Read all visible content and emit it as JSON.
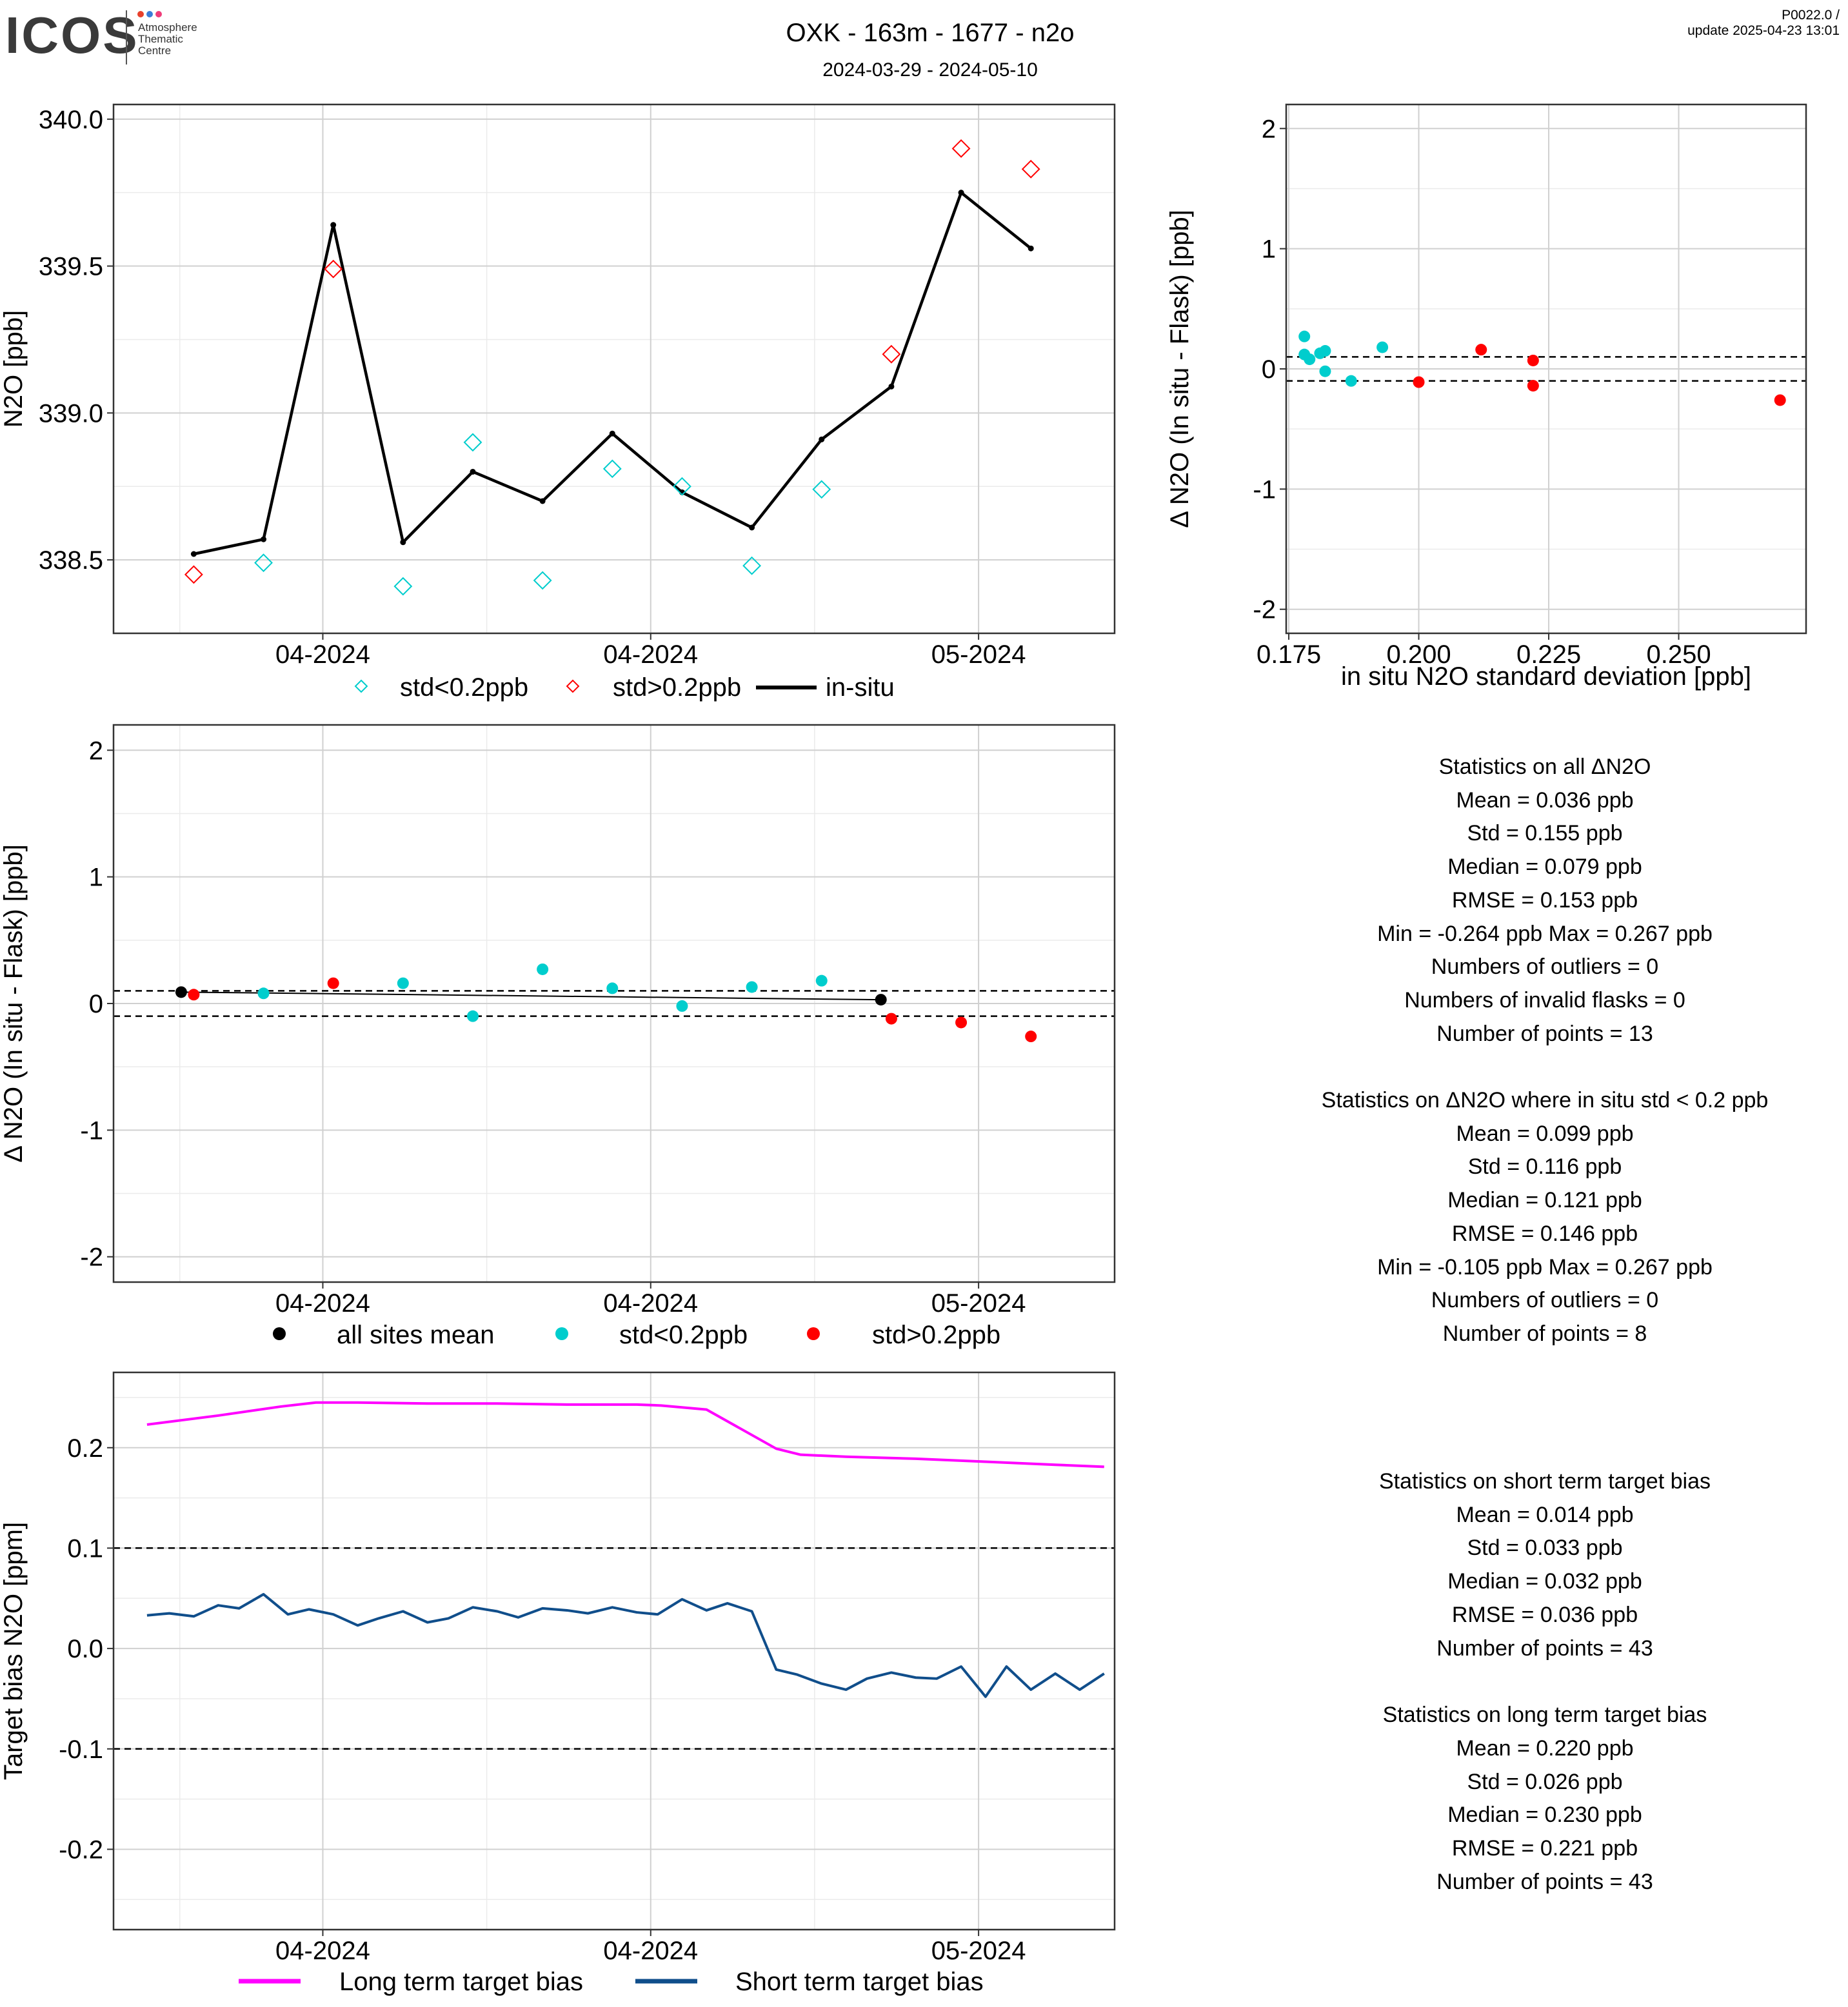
{
  "header": {
    "logo_word": "ICOS",
    "logo_sub": [
      "Atmosphere",
      "Thematic",
      "Centre"
    ],
    "logo_dot_colors": [
      "#e8412c",
      "#3b7dd8",
      "#ef3d7a"
    ],
    "title": "OXK - 163m - 1677 - n2o",
    "subtitle": "2024-03-29 - 2024-05-10",
    "version": "P0022.0 /",
    "update": "update  2025-04-23 13:01"
  },
  "colors": {
    "std_low": "#00CDCD",
    "std_high": "#FF0000",
    "insitu": "#000000",
    "long_term": "#FF00FF",
    "short_term": "#104E8B",
    "grid_major": "#d0d0d0",
    "grid_minor": "#ebebeb"
  },
  "chart_data": [
    {
      "id": "ts",
      "type": "line",
      "ylabel": "N2O [ppb]",
      "ylim": [
        338.25,
        340.05
      ],
      "yticks": [
        338.5,
        339.0,
        339.5,
        340.0
      ],
      "ytick_labels": [
        "338.5",
        "339.0",
        "339.5",
        "340.0"
      ],
      "xlim": [
        0.0,
        14.35
      ],
      "xticks": [
        3.0,
        7.7,
        12.4
      ],
      "xtick_labels": [
        "04-2024",
        "04-2024",
        "05-2024"
      ],
      "minor_x": [
        0.95,
        5.35,
        10.05
      ],
      "grid": true,
      "legend_position": "bottom",
      "legend": [
        "std<0.2ppb",
        "std>0.2ppb",
        "in-situ"
      ],
      "series": [
        {
          "name": "in-situ",
          "kind": "line",
          "x": [
            1.15,
            2.15,
            3.15,
            4.15,
            5.15,
            6.15,
            7.15,
            8.15,
            9.15,
            10.15,
            11.15,
            12.15,
            13.15
          ],
          "y": [
            338.52,
            338.57,
            339.64,
            338.56,
            338.8,
            338.7,
            338.93,
            338.73,
            338.61,
            338.91,
            339.09,
            339.75,
            339.56
          ]
        },
        {
          "name": "std<0.2ppb",
          "kind": "diamond",
          "x": [
            2.15,
            4.15,
            5.15,
            6.15,
            7.15,
            8.15,
            9.15,
            10.15
          ],
          "y": [
            338.49,
            338.41,
            338.9,
            338.43,
            338.81,
            338.75,
            338.48,
            338.74
          ]
        },
        {
          "name": "std>0.2ppb",
          "kind": "diamond",
          "x": [
            1.15,
            3.15,
            11.15,
            12.15,
            13.15
          ],
          "y": [
            338.45,
            339.49,
            339.2,
            339.9,
            339.83
          ]
        }
      ]
    },
    {
      "id": "scatter",
      "type": "scatter",
      "xlabel": "in situ N2O standard deviation [ppb]",
      "ylabel": "Δ N2O (In situ - Flask) [ppb]",
      "xlim": [
        0.1745,
        0.2745
      ],
      "ylim": [
        -2.2,
        2.2
      ],
      "xticks": [
        0.175,
        0.2,
        0.225,
        0.25
      ],
      "xtick_labels": [
        "0.175",
        "0.200",
        "0.225",
        "0.250"
      ],
      "yticks": [
        -2,
        -1,
        0,
        1,
        2
      ],
      "ytick_labels": [
        "-2",
        "-1",
        "0",
        "1",
        "2"
      ],
      "hlines": [
        0.1,
        -0.1
      ],
      "grid": true,
      "series": [
        {
          "name": "std<0.2ppb",
          "x": [
            0.178,
            0.178,
            0.179,
            0.181,
            0.182,
            0.182,
            0.187,
            0.193
          ],
          "y": [
            0.27,
            0.12,
            0.08,
            0.13,
            0.15,
            -0.02,
            -0.1,
            0.18
          ]
        },
        {
          "name": "std>0.2ppb",
          "x": [
            0.2,
            0.212,
            0.222,
            0.222,
            0.2695
          ],
          "y": [
            -0.11,
            0.16,
            0.07,
            -0.14,
            -0.26
          ]
        }
      ]
    },
    {
      "id": "delta",
      "type": "scatter",
      "ylabel": "Δ N2O (In situ - Flask) [ppb]",
      "ylim": [
        -2.2,
        2.2
      ],
      "yticks": [
        -2,
        -1,
        0,
        1,
        2
      ],
      "ytick_labels": [
        "-2",
        "-1",
        "0",
        "1",
        "2"
      ],
      "xlim": [
        0.0,
        14.35
      ],
      "xticks": [
        3.0,
        7.7,
        12.4
      ],
      "xtick_labels": [
        "04-2024",
        "04-2024",
        "05-2024"
      ],
      "minor_x": [
        0.95,
        5.35,
        10.05
      ],
      "hlines": [
        0.1,
        -0.1
      ],
      "grid": true,
      "legend_position": "bottom",
      "legend": [
        "all sites mean",
        "std<0.2ppb",
        "std>0.2ppb"
      ],
      "series": [
        {
          "name": "all sites mean",
          "x": [
            0.97,
            11.0
          ],
          "y": [
            0.09,
            0.03
          ]
        },
        {
          "name": "std<0.2ppb",
          "x": [
            2.15,
            4.15,
            5.15,
            6.15,
            7.15,
            8.15,
            9.15,
            10.15
          ],
          "y": [
            0.08,
            0.16,
            -0.1,
            0.27,
            0.12,
            -0.02,
            0.13,
            0.18
          ]
        },
        {
          "name": "std>0.2ppb",
          "x": [
            1.15,
            3.15,
            11.15,
            12.15,
            13.15
          ],
          "y": [
            0.07,
            0.16,
            -0.12,
            -0.15,
            -0.26
          ]
        }
      ]
    },
    {
      "id": "bias",
      "type": "line",
      "ylabel": "Target bias N2O [ppm]",
      "ylim": [
        -0.28,
        0.275
      ],
      "yticks": [
        -0.2,
        -0.1,
        0.0,
        0.1,
        0.2
      ],
      "ytick_labels": [
        "-0.2",
        "-0.1",
        "0.0",
        "0.1",
        "0.2"
      ],
      "xlim": [
        0.0,
        14.35
      ],
      "xticks": [
        3.0,
        7.7,
        12.4
      ],
      "xtick_labels": [
        "04-2024",
        "04-2024",
        "05-2024"
      ],
      "minor_x": [
        0.95,
        5.35,
        10.05
      ],
      "hlines": [
        0.1,
        -0.1
      ],
      "grid": true,
      "legend_position": "bottom",
      "legend": [
        "Long term target bias",
        "Short term target bias"
      ],
      "series": [
        {
          "name": "Long term target bias",
          "x": [
            0.48,
            1.5,
            2.4,
            2.9,
            3.5,
            4.5,
            5.5,
            6.5,
            7.5,
            7.85,
            8.5,
            9.5,
            9.85,
            10.5,
            11.5,
            12.5,
            13.5,
            14.2
          ],
          "y": [
            0.223,
            0.232,
            0.241,
            0.245,
            0.245,
            0.244,
            0.244,
            0.243,
            0.243,
            0.242,
            0.238,
            0.199,
            0.193,
            0.191,
            0.189,
            0.186,
            0.183,
            0.181
          ]
        },
        {
          "name": "Short term target bias",
          "x": [
            0.48,
            0.8,
            1.15,
            1.5,
            1.8,
            2.15,
            2.5,
            2.8,
            3.15,
            3.5,
            3.8,
            4.15,
            4.5,
            4.8,
            5.15,
            5.5,
            5.8,
            6.15,
            6.5,
            6.8,
            7.15,
            7.5,
            7.8,
            8.15,
            8.5,
            8.8,
            9.15,
            9.5,
            9.8,
            10.15,
            10.5,
            10.8,
            11.15,
            11.5,
            11.8,
            12.15,
            12.5,
            12.8,
            13.15,
            13.5,
            13.85,
            14.2
          ],
          "y": [
            0.033,
            0.035,
            0.032,
            0.043,
            0.04,
            0.054,
            0.034,
            0.039,
            0.034,
            0.023,
            0.03,
            0.037,
            0.026,
            0.03,
            0.041,
            0.037,
            0.031,
            0.04,
            0.038,
            0.035,
            0.041,
            0.036,
            0.034,
            0.049,
            0.038,
            0.045,
            0.037,
            -0.021,
            -0.026,
            -0.035,
            -0.041,
            -0.03,
            -0.024,
            -0.029,
            -0.03,
            -0.018,
            -0.048,
            -0.018,
            -0.041,
            -0.025,
            -0.041,
            -0.025
          ]
        }
      ]
    }
  ],
  "stats": {
    "block1": [
      "Statistics on all ΔN2O",
      "Mean =  0.036 ppb",
      "Std =  0.155 ppb",
      "Median =  0.079 ppb",
      "RMSE =  0.153 ppb",
      "Min =  -0.264 ppb Max =  0.267 ppb",
      "Numbers of outliers =  0",
      "Numbers of invalid flasks =  0",
      "Number of points =  13"
    ],
    "block2": [
      "Statistics on ΔN2O where in situ std < 0.2 ppb",
      "Mean =  0.099 ppb",
      "Std =  0.116 ppb",
      "Median =  0.121 ppb",
      "RMSE =  0.146 ppb",
      "Min =  -0.105 ppb Max =  0.267 ppb",
      "Numbers of outliers =  0",
      "Number of points =  8"
    ],
    "block3": [
      "Statistics on short term target bias",
      "Mean =  0.014 ppb",
      "Std =  0.033 ppb",
      "Median =  0.032 ppb",
      "RMSE =  0.036 ppb",
      "Number of points =  43"
    ],
    "block4": [
      "Statistics on long term target bias",
      "Mean =  0.220 ppb",
      "Std =  0.026 ppb",
      "Median =  0.230 ppb",
      "RMSE =  0.221 ppb",
      "Number of points =  43"
    ]
  }
}
